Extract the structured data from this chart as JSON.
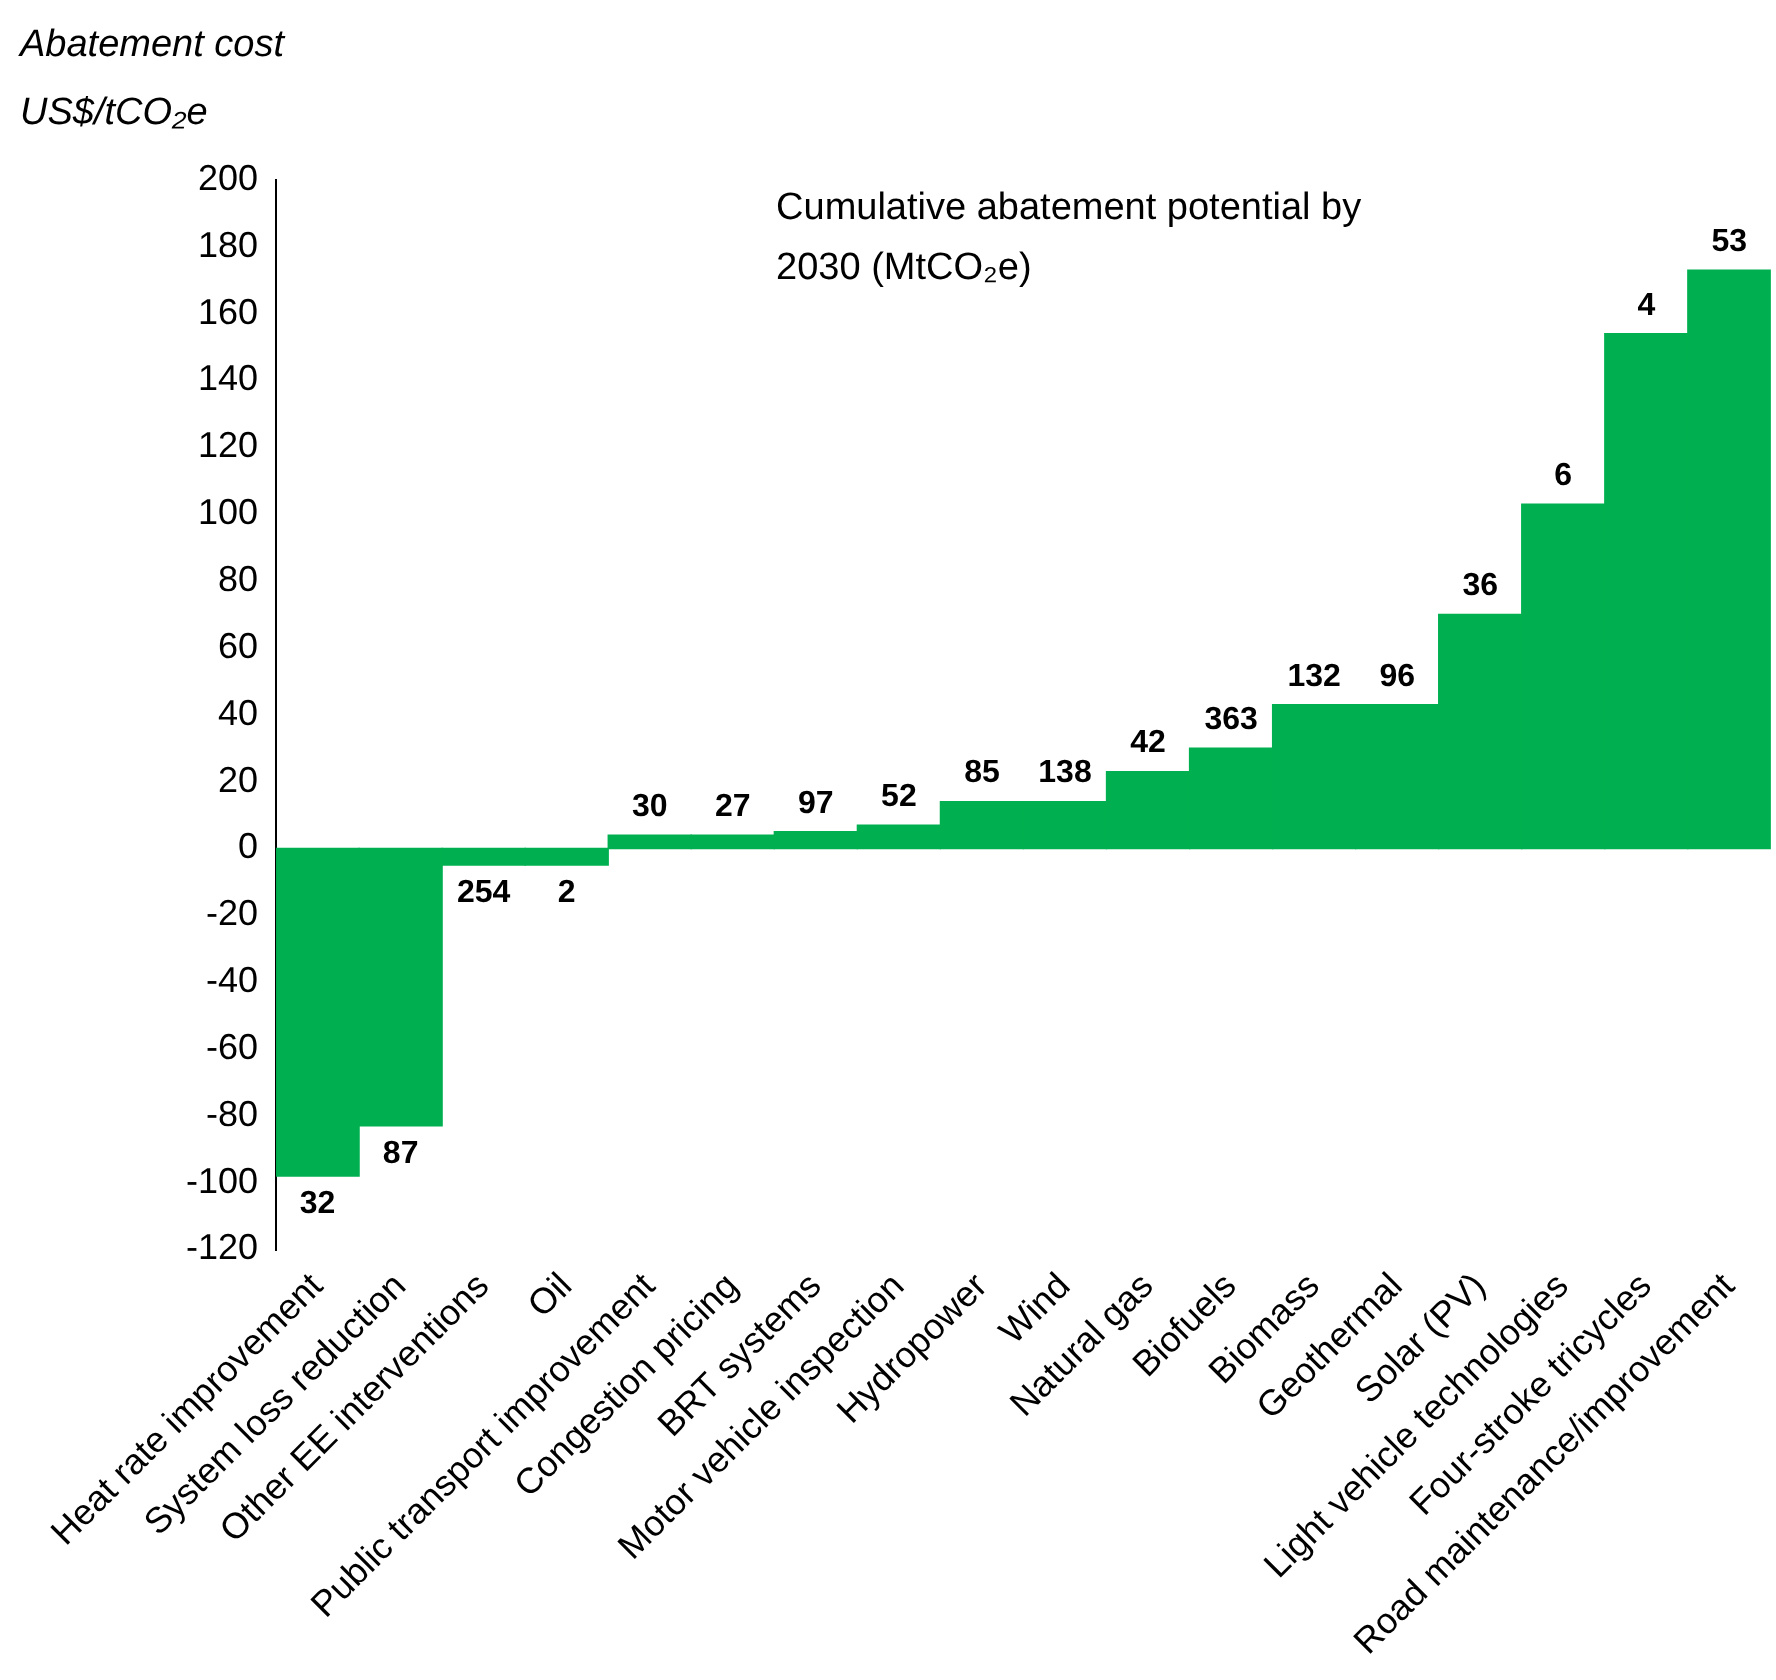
{
  "chart_data": {
    "type": "bar",
    "ylabel": "Abatement cost US$/tCO₂e",
    "categories": [
      "Heat rate improvement",
      "System loss reduction",
      "Other EE interventions",
      "Oil",
      "Public transport improvement",
      "Congestion pricing",
      "BRT systems",
      "Motor vehicle inspection",
      "Hydropower",
      "Wind",
      "Natural gas",
      "Biofuels",
      "Biomass",
      "Geothermal",
      "Solar (PV)",
      "Light vehicle technologies",
      "Four-stroke tricycles",
      "Road maintenance/improvement"
    ],
    "values": [
      -98,
      -83,
      -5,
      -5,
      4,
      4,
      5,
      7,
      14,
      14,
      23,
      30,
      43,
      43,
      70,
      103,
      154,
      173
    ],
    "color": "#00b050",
    "ylim": [
      -120,
      200
    ],
    "yticks": [
      -120,
      -100,
      -80,
      -60,
      -40,
      -20,
      0,
      20,
      40,
      60,
      80,
      100,
      120,
      140,
      160,
      180,
      200
    ],
    "grid": false,
    "legend": false,
    "annotations": [
      "Cumulative abatement potential by 2030 (MtCO₂e)",
      {
        "text": "32",
        "x": "Heat rate improvement",
        "y": -98
      },
      {
        "text": "87",
        "x": "System loss reduction",
        "y": -83
      },
      {
        "text": "254",
        "x": "Other EE interventions",
        "y": -5
      },
      {
        "text": "2",
        "x": "Oil",
        "y": -5
      },
      {
        "text": "30",
        "x": "Public transport improvement",
        "y": 4
      },
      {
        "text": "27",
        "x": "Congestion pricing",
        "y": 4
      },
      {
        "text": "97",
        "x": "BRT systems",
        "y": 5
      },
      {
        "text": "52",
        "x": "Motor vehicle inspection",
        "y": 7
      },
      {
        "text": "85",
        "x": "Hydropower",
        "y": 14
      },
      {
        "text": "138",
        "x": "Wind",
        "y": 14
      },
      {
        "text": "42",
        "x": "Natural gas",
        "y": 23
      },
      {
        "text": "363",
        "x": "Biofuels",
        "y": 30
      },
      {
        "text": "132",
        "x": "Biomass",
        "y": 43
      },
      {
        "text": "96",
        "x": "Geothermal",
        "y": 43
      },
      {
        "text": "36",
        "x": "Solar (PV)",
        "y": 70
      },
      {
        "text": "6",
        "x": "Light vehicle technologies",
        "y": 103
      },
      {
        "text": "4",
        "x": "Four-stroke tricycles",
        "y": 154
      },
      {
        "text": "53",
        "x": "Road maintenance/improvement",
        "y": 173
      }
    ]
  }
}
